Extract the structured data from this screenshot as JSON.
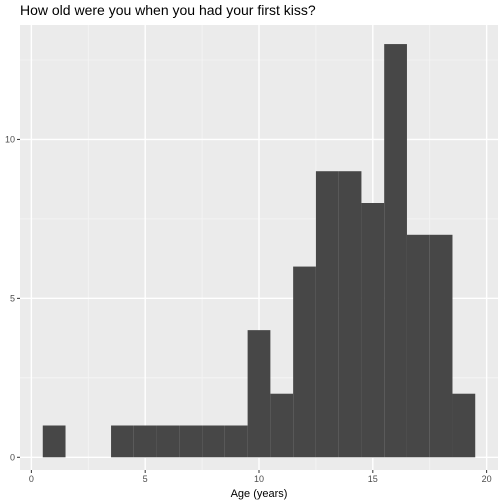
{
  "chart_data": {
    "type": "bar",
    "title": "How old were you when you had your first kiss?",
    "xlabel": "Age (years)",
    "ylabel": "",
    "xlim": [
      -0.5,
      20.5
    ],
    "ylim": [
      -0.4,
      13.6
    ],
    "x_ticks": [
      0,
      5,
      10,
      15,
      20
    ],
    "y_ticks": [
      0,
      5,
      10
    ],
    "bin_width": 1,
    "bins": [
      {
        "start": 0.5,
        "end": 1.5,
        "count": 1
      },
      {
        "start": 3.5,
        "end": 4.5,
        "count": 1
      },
      {
        "start": 4.5,
        "end": 5.5,
        "count": 1
      },
      {
        "start": 5.5,
        "end": 6.5,
        "count": 1
      },
      {
        "start": 6.5,
        "end": 7.5,
        "count": 1
      },
      {
        "start": 7.5,
        "end": 8.5,
        "count": 1
      },
      {
        "start": 8.5,
        "end": 9.5,
        "count": 1
      },
      {
        "start": 9.5,
        "end": 10.5,
        "count": 4
      },
      {
        "start": 10.5,
        "end": 11.5,
        "count": 2
      },
      {
        "start": 11.5,
        "end": 12.5,
        "count": 6
      },
      {
        "start": 12.5,
        "end": 13.5,
        "count": 9
      },
      {
        "start": 13.5,
        "end": 14.5,
        "count": 9
      },
      {
        "start": 14.5,
        "end": 15.5,
        "count": 8
      },
      {
        "start": 15.5,
        "end": 16.5,
        "count": 13
      },
      {
        "start": 16.5,
        "end": 17.5,
        "count": 7
      },
      {
        "start": 17.5,
        "end": 18.5,
        "count": 7
      },
      {
        "start": 18.5,
        "end": 19.5,
        "count": 2
      }
    ],
    "colors": {
      "panel_background": "#ebebeb",
      "grid_major": "#ffffff",
      "grid_minor": "#f5f5f5",
      "bar_fill": "#474747",
      "tick": "#333333"
    }
  }
}
